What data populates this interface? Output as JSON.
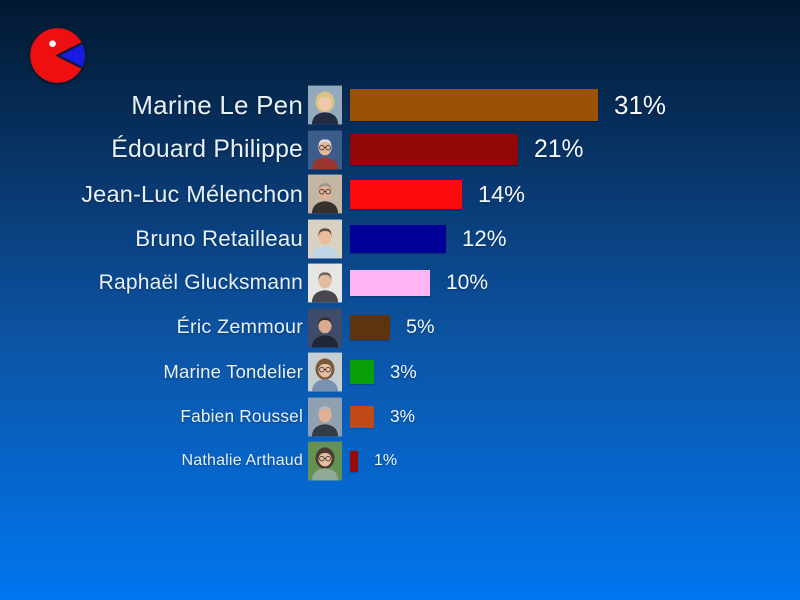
{
  "logo": {
    "shape": "pie-chart-pacman",
    "body_color": "#ee1010",
    "slice_color": "#1a1ae0",
    "outline_color": "#0a1c33",
    "eye_color": "#ffffff"
  },
  "chart_data": {
    "type": "bar",
    "orientation": "horizontal",
    "title": "",
    "xlabel": "",
    "ylabel": "",
    "unit": "%",
    "grid": false,
    "legend": false,
    "axis_shown": false,
    "value_labels": "right-of-bar",
    "xlim": [
      0,
      33
    ],
    "categories": [
      "Marine Le Pen",
      "Édouard Philippe",
      "Jean-Luc Mélenchon",
      "Bruno Retailleau",
      "Raphaël Glucksmann",
      "Éric Zemmour",
      "Marine Tondelier",
      "Fabien Roussel",
      "Nathalie Arthaud"
    ],
    "values": [
      31,
      21,
      14,
      12,
      10,
      5,
      3,
      3,
      1
    ],
    "bars": [
      {
        "name": "Marine Le Pen",
        "value": 31,
        "label": "31%",
        "color": "#9a5206",
        "photo": {
          "desc": "blonde woman, dark jacket, light blue background",
          "bg": "#93a9be",
          "hair": "#d9c383",
          "skin": "#efc9ac",
          "shirt": "#232c42",
          "hairstyle": "long",
          "glasses": false
        }
      },
      {
        "name": "Édouard Philippe",
        "value": 21,
        "label": "21%",
        "color": "#920707",
        "photo": {
          "desc": "white-haired man with glasses, red collar, blue background",
          "bg": "#3c5c8c",
          "hair": "#dcdcd8",
          "skin": "#e5b89c",
          "shirt": "#9c3430",
          "hairstyle": "short",
          "glasses": true
        }
      },
      {
        "name": "Jean-Luc Mélenchon",
        "value": 14,
        "label": "14%",
        "color": "#fa0a0a",
        "photo": {
          "desc": "gray-haired man with glasses, dark jacket, beige background",
          "bg": "#c3b7a4",
          "hair": "#9a948c",
          "skin": "#e0b294",
          "shirt": "#35302c",
          "hairstyle": "short",
          "glasses": true
        }
      },
      {
        "name": "Bruno Retailleau",
        "value": 12,
        "label": "12%",
        "color": "#000099",
        "photo": {
          "desc": "man in light blue shirt, beige background",
          "bg": "#d9d2c2",
          "hair": "#5f5044",
          "skin": "#e8bd9e",
          "shirt": "#bfd4e4",
          "hairstyle": "short",
          "glasses": false
        }
      },
      {
        "name": "Raphaël Glucksmann",
        "value": 10,
        "label": "10%",
        "color": "#ffb5f2",
        "photo": {
          "desc": "man in white shirt and dark jacket, light gray background",
          "bg": "#e6e6e4",
          "hair": "#6d655c",
          "skin": "#e6bb9c",
          "shirt": "#474750",
          "hairstyle": "short",
          "glasses": false
        }
      },
      {
        "name": "Éric Zemmour",
        "value": 5,
        "label": "5%",
        "color": "#5e340e",
        "photo": {
          "desc": "dark-haired man in dark suit, dark blue background",
          "bg": "#3e4c6a",
          "hair": "#2e2e34",
          "skin": "#d8ac8c",
          "shirt": "#222738",
          "hairstyle": "short",
          "glasses": false
        }
      },
      {
        "name": "Marine Tondelier",
        "value": 3,
        "label": "3%",
        "color": "#0a9e0a",
        "photo": {
          "desc": "woman with glasses in denim jacket, pale background",
          "bg": "#c5cfd2",
          "hair": "#7a5a3a",
          "skin": "#e8c0a4",
          "shirt": "#7a92b0",
          "hairstyle": "long",
          "glasses": true
        }
      },
      {
        "name": "Fabien Roussel",
        "value": 3,
        "label": "3%",
        "color": "#bf4a16",
        "photo": {
          "desc": "gray-haired man, blue-gray background",
          "bg": "#8fa0b0",
          "hair": "#b4b8bc",
          "skin": "#dfb092",
          "shirt": "#333b47",
          "hairstyle": "short",
          "glasses": false
        }
      },
      {
        "name": "Nathalie Arthaud",
        "value": 1,
        "label": "1%",
        "color": "#990a0a",
        "photo": {
          "desc": "woman with glasses, green foliage background",
          "bg": "#649255",
          "hair": "#4a3a30",
          "skin": "#e6bd9f",
          "shirt": "#90a896",
          "hairstyle": "long",
          "glasses": true
        }
      }
    ]
  }
}
